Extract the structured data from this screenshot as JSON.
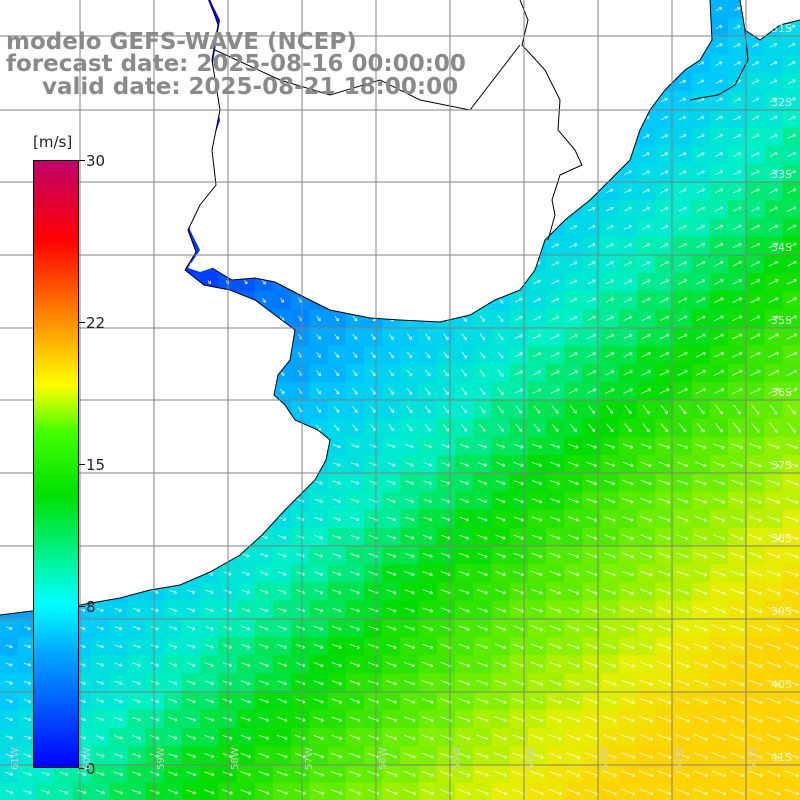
{
  "title": {
    "line1": "modelo GEFS-WAVE (NCEP)",
    "line2": "forecast date: 2025-08-16 00:00:00",
    "line3": "valid date: 2025-08-21 18:00:00"
  },
  "colorbar": {
    "units": "[m/s]",
    "ticks": [
      "30",
      "22",
      "15",
      "8",
      "0"
    ],
    "tick_values": [
      30,
      22,
      15,
      8,
      0
    ],
    "colors": [
      "#0000ff",
      "#00a0ff",
      "#00ffff",
      "#00e000",
      "#40ff00",
      "#ffff00",
      "#ff8000",
      "#ff0000",
      "#c0006a"
    ]
  },
  "map": {
    "lat_labels": [
      "31S",
      "32S",
      "33S",
      "34S",
      "35S",
      "36S",
      "37S",
      "38S",
      "39S",
      "40S",
      "41S"
    ],
    "lon_labels": [
      "61W",
      "60W",
      "59W",
      "58W",
      "57W",
      "56W",
      "55W",
      "54W",
      "53W",
      "52W",
      "51W"
    ],
    "land_color": "#ffffff",
    "grid_color": "#808080",
    "coast_color": "#000000"
  }
}
